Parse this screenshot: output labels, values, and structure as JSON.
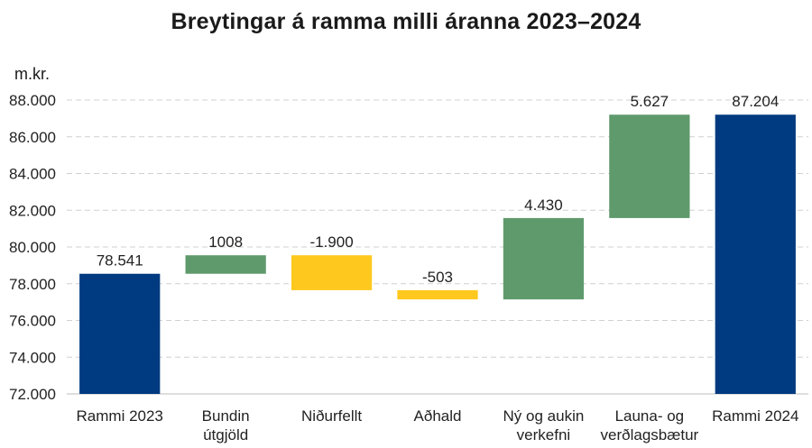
{
  "chart_data": {
    "type": "bar",
    "subtype": "waterfall",
    "title": "Breytingar á ramma milli áranna 2023–2024",
    "unit_label": "m.kr.",
    "ylim": [
      72000,
      88000
    ],
    "yticks": [
      72000,
      74000,
      76000,
      78000,
      80000,
      82000,
      84000,
      86000,
      88000
    ],
    "ytick_labels": [
      "72.000",
      "74.000",
      "76.000",
      "78.000",
      "80.000",
      "82.000",
      "84.000",
      "86.000",
      "88.000"
    ],
    "grid": true,
    "bars": [
      {
        "category": [
          "Rammi 2023"
        ],
        "kind": "total",
        "start": 72000,
        "end": 78541,
        "label": "78.541",
        "color": "#003a80"
      },
      {
        "category": [
          "Bundin",
          "útgjöld"
        ],
        "kind": "increase",
        "start": 78541,
        "end": 79549,
        "label": "1008",
        "color": "#5f9a6d"
      },
      {
        "category": [
          "Niðurfellt"
        ],
        "kind": "decrease",
        "start": 79549,
        "end": 77649,
        "label": "-1.900",
        "color": "#ffc81e"
      },
      {
        "category": [
          "Aðhald"
        ],
        "kind": "decrease",
        "start": 77649,
        "end": 77146,
        "label": "-503",
        "color": "#ffc81e"
      },
      {
        "category": [
          "Ný og aukin",
          "verkefni"
        ],
        "kind": "increase",
        "start": 77146,
        "end": 81576,
        "label": "4.430",
        "color": "#5f9a6d"
      },
      {
        "category": [
          "Launa- og",
          "verðlagsbætur"
        ],
        "kind": "increase",
        "start": 81576,
        "end": 87204,
        "label": "5.627",
        "color": "#5f9a6d"
      },
      {
        "category": [
          "Rammi 2024"
        ],
        "kind": "total",
        "start": 72000,
        "end": 87204,
        "label": "87.204",
        "color": "#003a80"
      }
    ]
  }
}
